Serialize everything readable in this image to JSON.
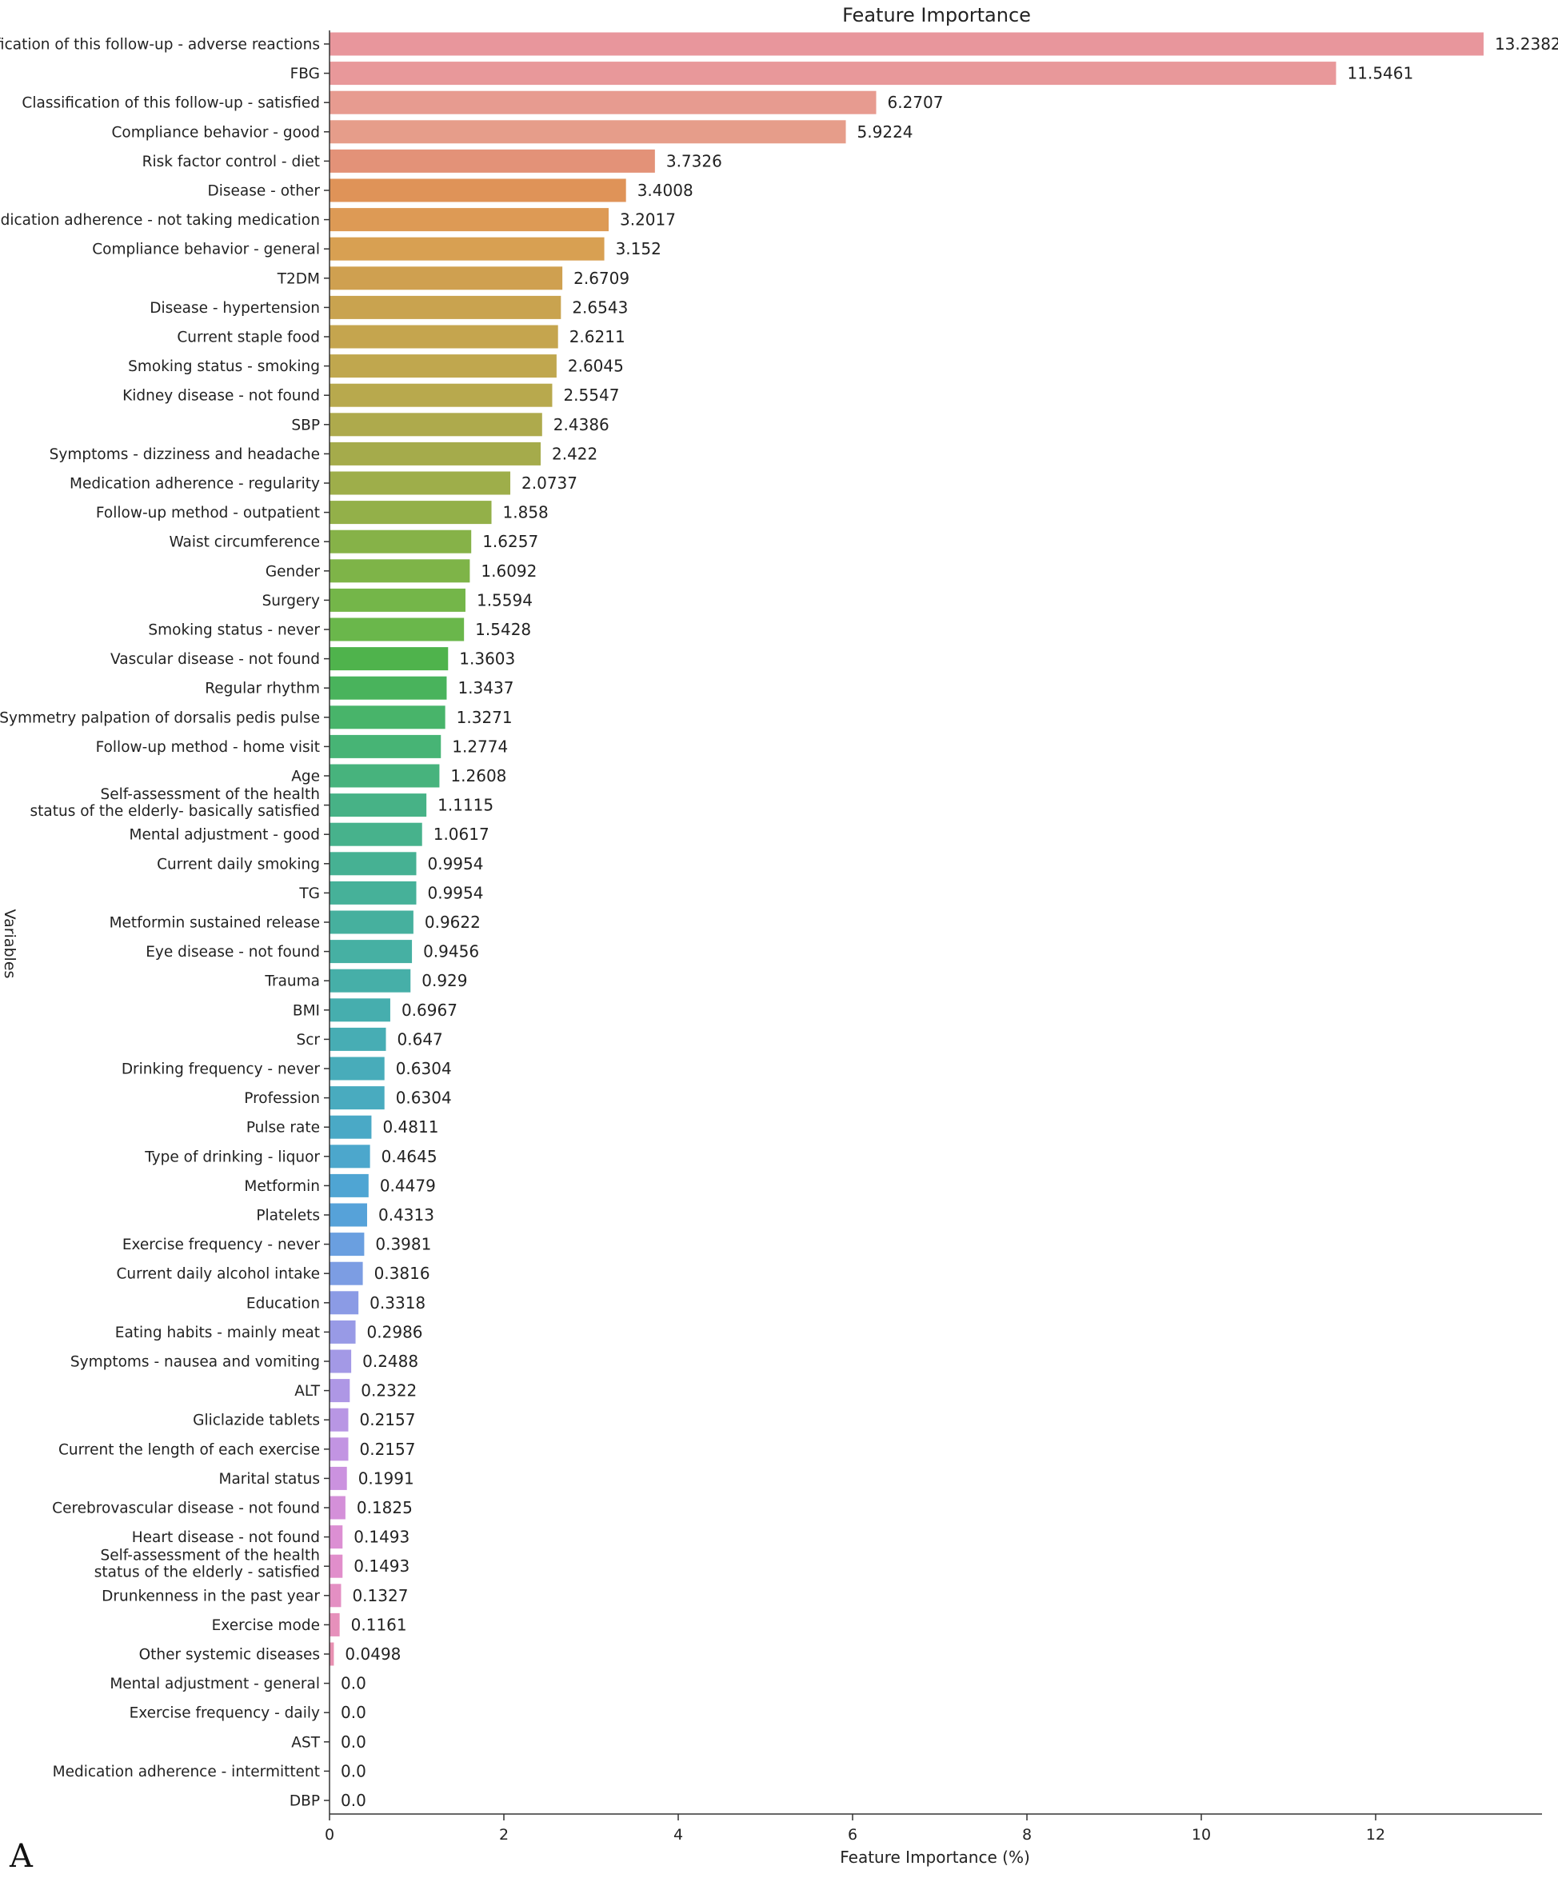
{
  "chart_data": {
    "type": "bar",
    "orientation": "horizontal",
    "title": "Feature Importance",
    "xlabel": "Feature Importance (%)",
    "ylabel": "Variables",
    "xlim": [
      0,
      13.9
    ],
    "x_ticks": [
      0,
      2,
      4,
      6,
      8,
      10,
      12
    ],
    "panel_label": "A",
    "grid": false,
    "categories": [
      "Classification of this follow-up - adverse reactions",
      "FBG",
      "Classification of this follow-up - satisfied",
      "Compliance behavior - good",
      "Risk factor control - diet",
      "Disease - other",
      "Medication adherence - not taking medication",
      "Compliance behavior - general",
      "T2DM",
      "Disease - hypertension",
      "Current staple food",
      "Smoking status - smoking",
      "Kidney disease - not found",
      "SBP",
      "Symptoms - dizziness and headache",
      "Medication adherence - regularity",
      "Follow-up method - outpatient",
      "Waist circumference",
      "Gender",
      "Surgery",
      "Smoking status - never",
      "Vascular disease - not found",
      "Regular rhythm",
      "Symmetry palpation of dorsalis pedis pulse",
      "Follow-up method - home visit",
      "Age",
      "Self-assessment of the health\nstatus of the elderly- basically satisfied",
      "Mental adjustment - good",
      "Current daily smoking",
      "TG",
      "Metformin sustained release",
      "Eye disease - not found",
      "Trauma",
      "BMI",
      "Scr",
      "Drinking frequency - never",
      "Profession",
      "Pulse rate",
      "Type of drinking - liquor",
      "Metformin",
      "Platelets",
      "Exercise frequency - never",
      "Current daily alcohol intake",
      "Education",
      "Eating habits - mainly meat",
      "Symptoms - nausea and vomiting",
      "ALT",
      "Gliclazide tablets",
      "Current the length of each exercise",
      "Marital status",
      "Cerebrovascular disease - not found",
      "Heart disease - not found",
      "Self-assessment of the health\nstatus of the elderly - satisfied",
      "Drunkenness in the past year",
      "Exercise mode",
      "Other systemic diseases",
      "Mental adjustment - general",
      "Exercise frequency - daily",
      "AST",
      "Medication adherence - intermittent",
      "DBP"
    ],
    "values": [
      13.2382,
      11.5461,
      6.2707,
      5.9224,
      3.7326,
      3.4008,
      3.2017,
      3.152,
      2.6709,
      2.6543,
      2.6211,
      2.6045,
      2.5547,
      2.4386,
      2.422,
      2.0737,
      1.858,
      1.6257,
      1.6092,
      1.5594,
      1.5428,
      1.3603,
      1.3437,
      1.3271,
      1.2774,
      1.2608,
      1.1115,
      1.0617,
      0.9954,
      0.9954,
      0.9622,
      0.9456,
      0.929,
      0.6967,
      0.647,
      0.6304,
      0.6304,
      0.4811,
      0.4645,
      0.4479,
      0.4313,
      0.3981,
      0.3816,
      0.3318,
      0.2986,
      0.2488,
      0.2322,
      0.2157,
      0.2157,
      0.1991,
      0.1825,
      0.1493,
      0.1493,
      0.1327,
      0.1161,
      0.0498,
      0.0,
      0.0,
      0.0,
      0.0,
      0.0
    ],
    "value_labels": [
      "13.2382",
      "11.5461",
      "6.2707",
      "5.9224",
      "3.7326",
      "3.4008",
      "3.2017",
      "3.152",
      "2.6709",
      "2.6543",
      "2.6211",
      "2.6045",
      "2.5547",
      "2.4386",
      "2.422",
      "2.0737",
      "1.858",
      "1.6257",
      "1.6092",
      "1.5594",
      "1.5428",
      "1.3603",
      "1.3437",
      "1.3271",
      "1.2774",
      "1.2608",
      "1.1115",
      "1.0617",
      "0.9954",
      "0.9954",
      "0.9622",
      "0.9456",
      "0.929",
      "0.6967",
      "0.647",
      "0.6304",
      "0.6304",
      "0.4811",
      "0.4645",
      "0.4479",
      "0.4313",
      "0.3981",
      "0.3816",
      "0.3318",
      "0.2986",
      "0.2488",
      "0.2322",
      "0.2157",
      "0.2157",
      "0.1991",
      "0.1825",
      "0.1493",
      "0.1493",
      "0.1327",
      "0.1161",
      "0.0498",
      "0.0",
      "0.0",
      "0.0",
      "0.0",
      "0.0"
    ],
    "colors": [
      "#e8969c",
      "#e8989a",
      "#e79b90",
      "#e69d8a",
      "#e39278",
      "#df9358",
      "#dd9a55",
      "#d8a052",
      "#cfa050",
      "#c9a34f",
      "#c5a54e",
      "#c0a74e",
      "#b8a94d",
      "#aeaa4c",
      "#a5ab4b",
      "#9eae4a",
      "#93b049",
      "#86b248",
      "#7eb448",
      "#74b649",
      "#6ab74b",
      "#4fb34c",
      "#49b35c",
      "#48b46a",
      "#47b475",
      "#47b37d",
      "#47b286",
      "#47b28c",
      "#46b193",
      "#46b199",
      "#46b09e",
      "#46b0a3",
      "#46afa8",
      "#46aeae",
      "#47adb4",
      "#48acba",
      "#49abbf",
      "#4aa9c6",
      "#4ca7cc",
      "#4fa5d3",
      "#56a2d9",
      "#6a9fe0",
      "#7c9de3",
      "#8b9be5",
      "#989ae6",
      "#a399e6",
      "#ae97e5",
      "#b896e4",
      "#c294e2",
      "#cb92df",
      "#d490d9",
      "#dc8fd3",
      "#e18ecb",
      "#e48fc3",
      "#e690bb",
      "#e891b2",
      "#e993ab",
      "#e994a6",
      "#e995a2",
      "#e9969f",
      "#e9979d"
    ],
    "axis_color": "#333333",
    "text_color": "#222222"
  }
}
